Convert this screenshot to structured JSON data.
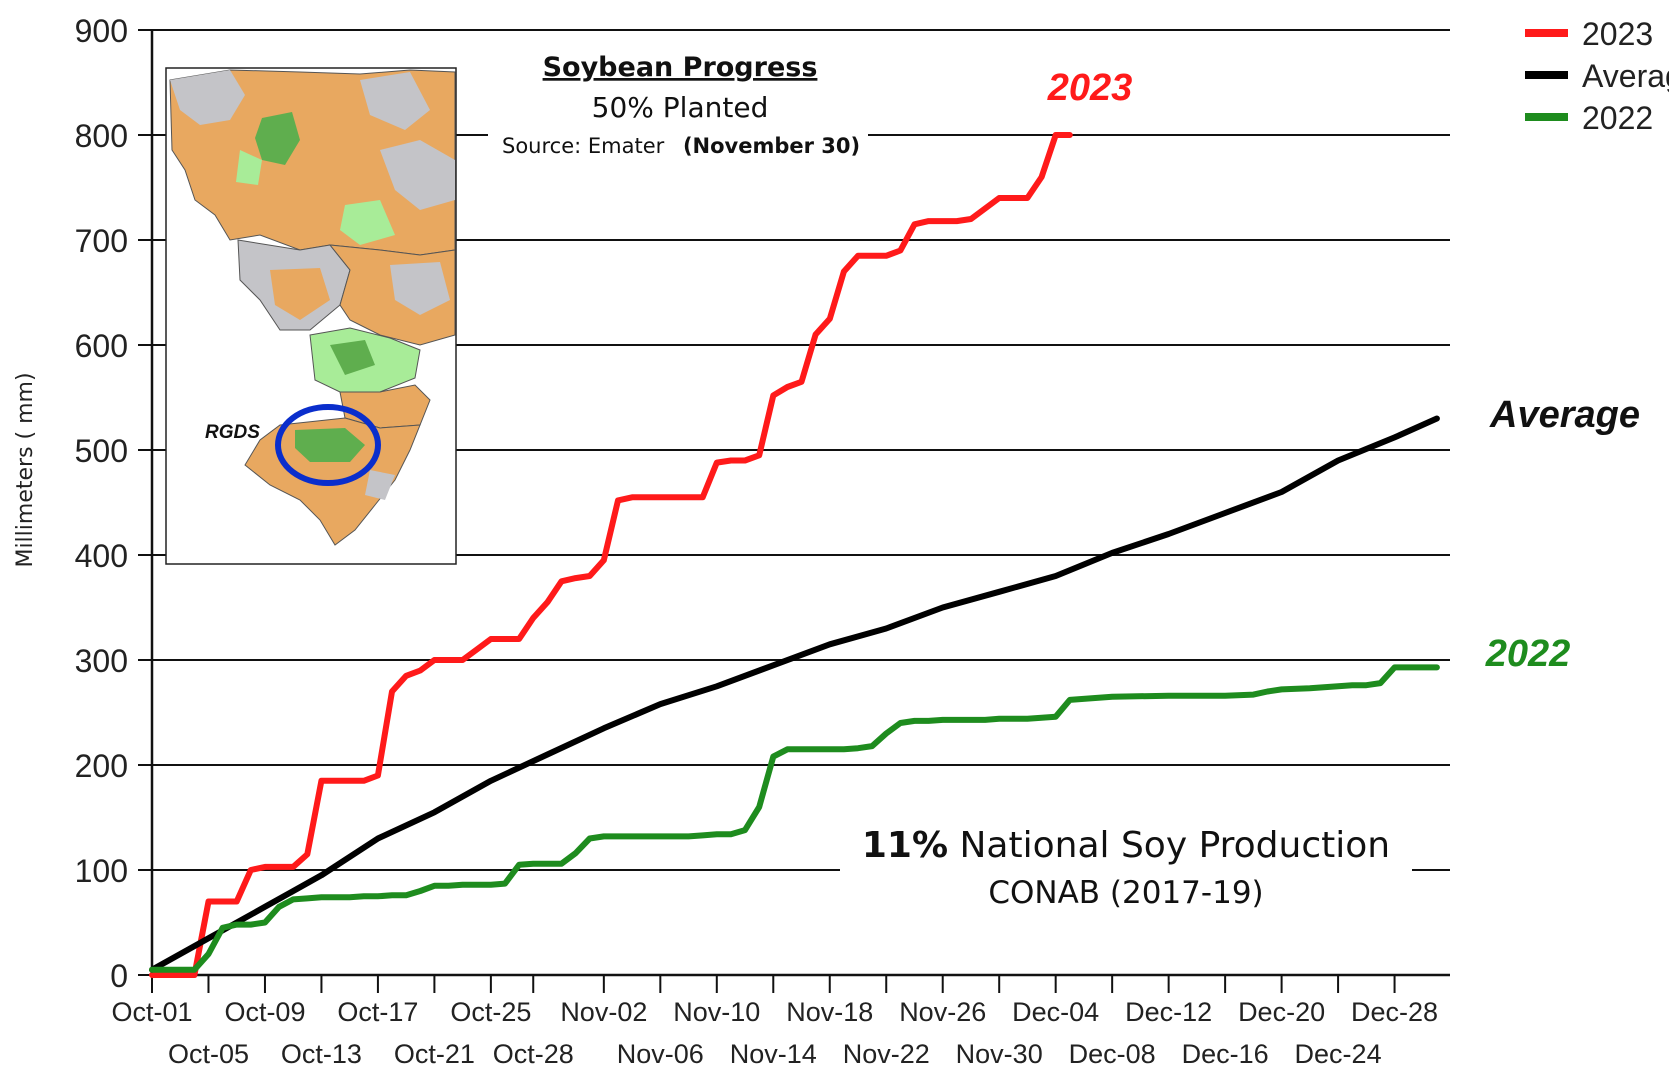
{
  "chart_data": {
    "type": "line",
    "title": "Soybean Progress",
    "ylabel": "Millimeters ( mm)",
    "ylim": [
      0,
      900
    ],
    "yticks": [
      0,
      100,
      200,
      300,
      400,
      500,
      600,
      700,
      800,
      900
    ],
    "x_start": "Oct-01",
    "x_end_day": 85,
    "xticks_row1": [
      "Oct-01",
      "Oct-09",
      "Oct-17",
      "Oct-25",
      "Nov-02",
      "Nov-10",
      "Nov-18",
      "Nov-26",
      "Dec-04",
      "Dec-12",
      "Dec-20",
      "Dec-28"
    ],
    "xticks_row2": [
      "Oct-05",
      "Oct-13",
      "Oct-21",
      "Oct-28",
      "Nov-06",
      "Nov-14",
      "Nov-22",
      "Nov-30",
      "Dec-08",
      "Dec-16",
      "Dec-24"
    ],
    "grid": "horizontal",
    "legend_position": "top-right",
    "series": [
      {
        "name": "2023",
        "color": "#ff1a1a",
        "x": [
          "Oct-01",
          "Oct-03",
          "Oct-04",
          "Oct-05",
          "Oct-06",
          "Oct-07",
          "Oct-08",
          "Oct-09",
          "Oct-10",
          "Oct-11",
          "Oct-12",
          "Oct-13",
          "Oct-14",
          "Oct-15",
          "Oct-16",
          "Oct-17",
          "Oct-18",
          "Oct-19",
          "Oct-20",
          "Oct-21",
          "Oct-22",
          "Oct-23",
          "Oct-24",
          "Oct-25",
          "Oct-26",
          "Oct-27",
          "Oct-28",
          "Oct-29",
          "Oct-30",
          "Oct-31",
          "Nov-01",
          "Nov-02",
          "Nov-03",
          "Nov-04",
          "Nov-05",
          "Nov-06",
          "Nov-07",
          "Nov-08",
          "Nov-09",
          "Nov-10",
          "Nov-11",
          "Nov-12",
          "Nov-13",
          "Nov-14",
          "Nov-15",
          "Nov-16",
          "Nov-17",
          "Nov-18",
          "Nov-19",
          "Nov-20",
          "Nov-21",
          "Nov-22",
          "Nov-23",
          "Nov-24",
          "Nov-25",
          "Nov-26",
          "Nov-27",
          "Nov-28",
          "Nov-29",
          "Nov-30",
          "Dec-01",
          "Dec-02",
          "Dec-03",
          "Dec-04",
          "Dec-05"
        ],
        "y": [
          0,
          0,
          0,
          70,
          70,
          70,
          100,
          103,
          103,
          103,
          115,
          185,
          185,
          185,
          185,
          190,
          270,
          285,
          290,
          300,
          300,
          300,
          310,
          320,
          320,
          320,
          340,
          355,
          375,
          378,
          380,
          395,
          452,
          455,
          455,
          455,
          455,
          455,
          455,
          488,
          490,
          490,
          495,
          552,
          560,
          565,
          610,
          625,
          670,
          685,
          685,
          685,
          690,
          715,
          718,
          718,
          718,
          720,
          730,
          740,
          740,
          740,
          760,
          800,
          800
        ]
      },
      {
        "name": "Average",
        "color": "#000000",
        "x": [
          "Oct-01",
          "Oct-05",
          "Oct-09",
          "Oct-13",
          "Oct-17",
          "Oct-21",
          "Oct-25",
          "Oct-29",
          "Nov-02",
          "Nov-06",
          "Nov-10",
          "Nov-14",
          "Nov-18",
          "Nov-22",
          "Nov-26",
          "Nov-30",
          "Dec-04",
          "Dec-08",
          "Dec-12",
          "Dec-16",
          "Dec-20",
          "Dec-24",
          "Dec-28",
          "Dec-31"
        ],
        "y": [
          5,
          35,
          65,
          95,
          130,
          155,
          185,
          210,
          235,
          258,
          275,
          295,
          315,
          330,
          350,
          365,
          380,
          402,
          420,
          440,
          460,
          490,
          512,
          530
        ]
      },
      {
        "name": "2022",
        "color": "#1e8c1e",
        "x": [
          "Oct-01",
          "Oct-02",
          "Oct-03",
          "Oct-04",
          "Oct-05",
          "Oct-06",
          "Oct-07",
          "Oct-08",
          "Oct-09",
          "Oct-10",
          "Oct-11",
          "Oct-12",
          "Oct-13",
          "Oct-14",
          "Oct-15",
          "Oct-16",
          "Oct-17",
          "Oct-18",
          "Oct-19",
          "Oct-20",
          "Oct-21",
          "Oct-22",
          "Oct-23",
          "Oct-24",
          "Oct-25",
          "Oct-26",
          "Oct-27",
          "Oct-28",
          "Oct-29",
          "Oct-30",
          "Oct-31",
          "Nov-01",
          "Nov-02",
          "Nov-03",
          "Nov-04",
          "Nov-05",
          "Nov-06",
          "Nov-07",
          "Nov-08",
          "Nov-09",
          "Nov-10",
          "Nov-11",
          "Nov-12",
          "Nov-13",
          "Nov-14",
          "Nov-15",
          "Nov-16",
          "Nov-17",
          "Nov-18",
          "Nov-19",
          "Nov-20",
          "Nov-21",
          "Nov-22",
          "Nov-23",
          "Nov-24",
          "Nov-25",
          "Nov-26",
          "Nov-27",
          "Nov-28",
          "Nov-29",
          "Nov-30",
          "Dec-01",
          "Dec-02",
          "Dec-03",
          "Dec-04",
          "Dec-05",
          "Dec-08",
          "Dec-12",
          "Dec-16",
          "Dec-18",
          "Dec-19",
          "Dec-20",
          "Dec-22",
          "Dec-24",
          "Dec-25",
          "Dec-26",
          "Dec-27",
          "Dec-28",
          "Dec-31"
        ],
        "y": [
          5,
          5,
          5,
          5,
          20,
          45,
          48,
          48,
          50,
          65,
          72,
          73,
          74,
          74,
          74,
          75,
          75,
          76,
          76,
          80,
          85,
          85,
          86,
          86,
          86,
          87,
          105,
          106,
          106,
          106,
          116,
          130,
          132,
          132,
          132,
          132,
          132,
          132,
          132,
          133,
          134,
          134,
          138,
          160,
          208,
          215,
          215,
          215,
          215,
          215,
          216,
          218,
          230,
          240,
          242,
          242,
          243,
          243,
          243,
          243,
          244,
          244,
          244,
          245,
          246,
          262,
          265,
          266,
          266,
          267,
          270,
          272,
          273,
          275,
          276,
          276,
          278,
          293,
          293
        ]
      }
    ],
    "annotations": {
      "label_2023": "2023",
      "label_average": "Average",
      "label_2022": "2022"
    }
  },
  "inset": {
    "title": "Soybean Progress",
    "subtitle": "50% Planted",
    "source_prefix": "Source: Emater",
    "source_date": "(November 30)",
    "map_label": "RGDS"
  },
  "production_note": {
    "pct": "11%",
    "text": " National Soy Production",
    "source": "CONAB (2017-19)"
  },
  "colors": {
    "red": "#ff1a1a",
    "black": "#000000",
    "green": "#1e8c1e",
    "map_orange": "#e8a860",
    "map_gray": "#c4c4c8",
    "map_green_light": "#a8ec98",
    "map_green_dark": "#5fae4e",
    "circle_blue": "#0a2ecc"
  }
}
